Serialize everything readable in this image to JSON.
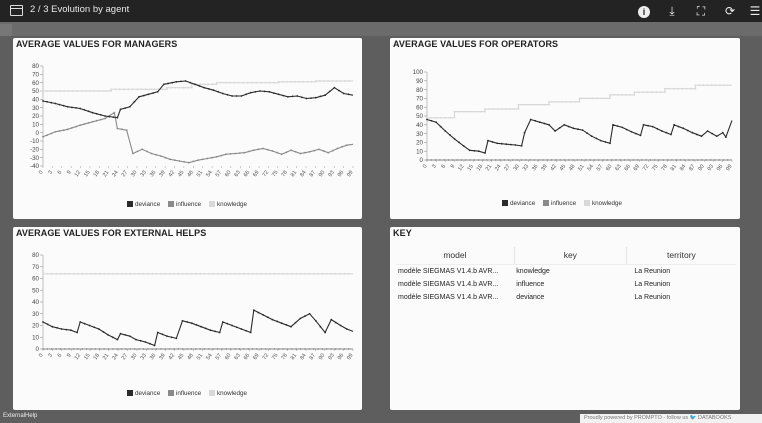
{
  "app": {
    "title": "2 / 3 Evolution by agent",
    "status": "ExternalHelp",
    "powered_by": "Proudly powered by PROMPTO - follow us 🐦 DATABOOKS"
  },
  "toolbar_icons": [
    "window-icon",
    "info-icon",
    "download-icon",
    "fullscreen-icon",
    "refresh-icon",
    "menu-icon"
  ],
  "colors": {
    "deviance": "#2b2b2b",
    "influence": "#8a8a8a",
    "knowledge": "#d8d8d8",
    "axis": "#999999"
  },
  "legend": [
    "deviance",
    "influence",
    "knowledge"
  ],
  "chart_data": [
    {
      "type": "line",
      "title": "AVERAGE VALUES FOR MANAGERS",
      "xlabel": "",
      "ylabel": "",
      "x_ticks": [
        "0",
        "3",
        "6",
        "9",
        "12",
        "15",
        "18",
        "21",
        "24",
        "27",
        "30",
        "33",
        "36",
        "39",
        "42",
        "45",
        "48",
        "51",
        "54",
        "57",
        "60",
        "63",
        "66",
        "69",
        "72",
        "75",
        "78",
        "81",
        "84",
        "87",
        "90",
        "93",
        "96",
        "99"
      ],
      "y_ticks": [
        80,
        70,
        60,
        50,
        40,
        30,
        20,
        10,
        0,
        -10,
        -20,
        -30,
        -40
      ],
      "ylim": [
        -40,
        80
      ],
      "xlim": [
        0,
        100
      ],
      "series": [
        {
          "name": "deviance",
          "points": [
            [
              0,
              38
            ],
            [
              4,
              35
            ],
            [
              8,
              31
            ],
            [
              12,
              29
            ],
            [
              16,
              24
            ],
            [
              20,
              20
            ],
            [
              24,
              18
            ],
            [
              25,
              28
            ],
            [
              28,
              31
            ],
            [
              31,
              43
            ],
            [
              34,
              46
            ],
            [
              37,
              49
            ],
            [
              39,
              58
            ],
            [
              43,
              61
            ],
            [
              46,
              62
            ],
            [
              49,
              58
            ],
            [
              52,
              54
            ],
            [
              55,
              51
            ],
            [
              58,
              47
            ],
            [
              61,
              44
            ],
            [
              64,
              44
            ],
            [
              67,
              48
            ],
            [
              70,
              50
            ],
            [
              73,
              49
            ],
            [
              76,
              46
            ],
            [
              79,
              43
            ],
            [
              82,
              44
            ],
            [
              85,
              41
            ],
            [
              88,
              42
            ],
            [
              91,
              45
            ],
            [
              94,
              54
            ],
            [
              97,
              47
            ],
            [
              100,
              45
            ]
          ]
        },
        {
          "name": "influence",
          "points": [
            [
              0,
              -5
            ],
            [
              4,
              1
            ],
            [
              8,
              4
            ],
            [
              12,
              9
            ],
            [
              16,
              13
            ],
            [
              20,
              17
            ],
            [
              23,
              24
            ],
            [
              24,
              5
            ],
            [
              27,
              3
            ],
            [
              29,
              -25
            ],
            [
              32,
              -20
            ],
            [
              35,
              -25
            ],
            [
              38,
              -28
            ],
            [
              41,
              -32
            ],
            [
              44,
              -34
            ],
            [
              47,
              -36
            ],
            [
              50,
              -33
            ],
            [
              53,
              -31
            ],
            [
              56,
              -29
            ],
            [
              59,
              -26
            ],
            [
              62,
              -25
            ],
            [
              65,
              -24
            ],
            [
              68,
              -21
            ],
            [
              71,
              -19
            ],
            [
              74,
              -22
            ],
            [
              77,
              -26
            ],
            [
              80,
              -21
            ],
            [
              83,
              -25
            ],
            [
              86,
              -23
            ],
            [
              89,
              -20
            ],
            [
              92,
              -24
            ],
            [
              95,
              -19
            ],
            [
              98,
              -15
            ],
            [
              100,
              -14
            ]
          ]
        },
        {
          "name": "knowledge",
          "points": [
            [
              0,
              50
            ],
            [
              22,
              50
            ],
            [
              22,
              52
            ],
            [
              40,
              52
            ],
            [
              40,
              54
            ],
            [
              48,
              54
            ],
            [
              48,
              58
            ],
            [
              56,
              58
            ],
            [
              56,
              60
            ],
            [
              76,
              60
            ],
            [
              76,
              61
            ],
            [
              88,
              61
            ],
            [
              88,
              62
            ],
            [
              100,
              62
            ]
          ]
        }
      ]
    },
    {
      "type": "line",
      "title": "AVERAGE VALUES FOR OPERATORS",
      "xlabel": "",
      "ylabel": "",
      "x_ticks": [
        "0",
        "3",
        "6",
        "9",
        "12",
        "15",
        "18",
        "21",
        "24",
        "27",
        "30",
        "33",
        "36",
        "39",
        "42",
        "45",
        "48",
        "51",
        "54",
        "57",
        "60",
        "63",
        "66",
        "69",
        "72",
        "75",
        "78",
        "81",
        "84",
        "87",
        "90",
        "93",
        "96",
        "99"
      ],
      "y_ticks": [
        100,
        90,
        80,
        70,
        60,
        50,
        40,
        30,
        20,
        10,
        0
      ],
      "ylim": [
        0,
        100
      ],
      "xlim": [
        0,
        100
      ],
      "series": [
        {
          "name": "deviance",
          "points": [
            [
              0,
              46
            ],
            [
              3,
              43
            ],
            [
              6,
              33
            ],
            [
              9,
              24
            ],
            [
              12,
              16
            ],
            [
              14,
              11
            ],
            [
              17,
              10
            ],
            [
              19,
              8
            ],
            [
              20,
              22
            ],
            [
              23,
              19
            ],
            [
              26,
              18
            ],
            [
              29,
              17
            ],
            [
              31,
              16
            ],
            [
              32,
              31
            ],
            [
              34,
              46
            ],
            [
              37,
              43
            ],
            [
              40,
              40
            ],
            [
              42,
              33
            ],
            [
              45,
              40
            ],
            [
              48,
              36
            ],
            [
              51,
              34
            ],
            [
              54,
              27
            ],
            [
              57,
              22
            ],
            [
              60,
              19
            ],
            [
              61,
              40
            ],
            [
              64,
              37
            ],
            [
              67,
              32
            ],
            [
              70,
              28
            ],
            [
              71,
              40
            ],
            [
              74,
              38
            ],
            [
              77,
              33
            ],
            [
              80,
              29
            ],
            [
              81,
              40
            ],
            [
              84,
              36
            ],
            [
              87,
              31
            ],
            [
              90,
              27
            ],
            [
              92,
              33
            ],
            [
              95,
              27
            ],
            [
              97,
              31
            ],
            [
              98,
              26
            ],
            [
              100,
              45
            ]
          ]
        },
        {
          "name": "influence",
          "points": [
            [
              0,
              0
            ],
            [
              100,
              0
            ]
          ]
        },
        {
          "name": "knowledge",
          "points": [
            [
              0,
              48
            ],
            [
              9,
              48
            ],
            [
              9,
              55
            ],
            [
              19,
              55
            ],
            [
              19,
              58
            ],
            [
              30,
              58
            ],
            [
              30,
              63
            ],
            [
              40,
              63
            ],
            [
              40,
              66
            ],
            [
              50,
              66
            ],
            [
              50,
              70
            ],
            [
              60,
              70
            ],
            [
              60,
              74
            ],
            [
              68,
              74
            ],
            [
              68,
              77
            ],
            [
              78,
              77
            ],
            [
              78,
              81
            ],
            [
              88,
              81
            ],
            [
              88,
              85
            ],
            [
              100,
              85
            ]
          ]
        }
      ]
    },
    {
      "type": "line",
      "title": "AVERAGE VALUES FOR EXTERNAL HELPS",
      "xlabel": "",
      "ylabel": "",
      "x_ticks": [
        "0",
        "3",
        "6",
        "9",
        "12",
        "15",
        "18",
        "21",
        "24",
        "27",
        "30",
        "33",
        "36",
        "39",
        "42",
        "45",
        "48",
        "51",
        "54",
        "57",
        "60",
        "63",
        "66",
        "69",
        "72",
        "75",
        "78",
        "81",
        "84",
        "87",
        "90",
        "93",
        "96",
        "99"
      ],
      "y_ticks": [
        80,
        70,
        60,
        50,
        40,
        30,
        20,
        10,
        0
      ],
      "ylim": [
        0,
        80
      ],
      "xlim": [
        0,
        100
      ],
      "series": [
        {
          "name": "deviance",
          "points": [
            [
              0,
              23
            ],
            [
              3,
              19
            ],
            [
              6,
              17
            ],
            [
              9,
              16
            ],
            [
              11,
              14
            ],
            [
              12,
              23
            ],
            [
              15,
              20
            ],
            [
              18,
              17
            ],
            [
              21,
              12
            ],
            [
              24,
              8
            ],
            [
              25,
              13
            ],
            [
              28,
              11
            ],
            [
              30,
              8
            ],
            [
              33,
              6
            ],
            [
              36,
              3
            ],
            [
              37,
              14
            ],
            [
              40,
              11
            ],
            [
              43,
              9
            ],
            [
              45,
              24
            ],
            [
              48,
              22
            ],
            [
              51,
              19
            ],
            [
              54,
              16
            ],
            [
              57,
              14
            ],
            [
              58,
              23
            ],
            [
              61,
              20
            ],
            [
              64,
              17
            ],
            [
              67,
              14
            ],
            [
              68,
              33
            ],
            [
              71,
              29
            ],
            [
              74,
              25
            ],
            [
              77,
              22
            ],
            [
              80,
              19
            ],
            [
              83,
              26
            ],
            [
              86,
              30
            ],
            [
              88,
              24
            ],
            [
              91,
              14
            ],
            [
              93,
              25
            ],
            [
              96,
              20
            ],
            [
              98,
              17
            ],
            [
              100,
              15
            ]
          ]
        },
        {
          "name": "influence",
          "points": [
            [
              0,
              0
            ],
            [
              100,
              0
            ]
          ]
        },
        {
          "name": "knowledge",
          "points": [
            [
              0,
              64
            ],
            [
              100,
              64
            ]
          ]
        }
      ]
    }
  ],
  "key_panel": {
    "title": "KEY",
    "headers": [
      "model",
      "key",
      "territory"
    ],
    "rows": [
      [
        "modèle SIEGMAS V1.4.b AVR...",
        "knowledge",
        "La Reunion"
      ],
      [
        "modèle SIEGMAS V1.4.b AVR...",
        "influence",
        "La Reunion"
      ],
      [
        "modèle SIEGMAS V1.4.b AVR...",
        "deviance",
        "La Reunion"
      ]
    ]
  }
}
